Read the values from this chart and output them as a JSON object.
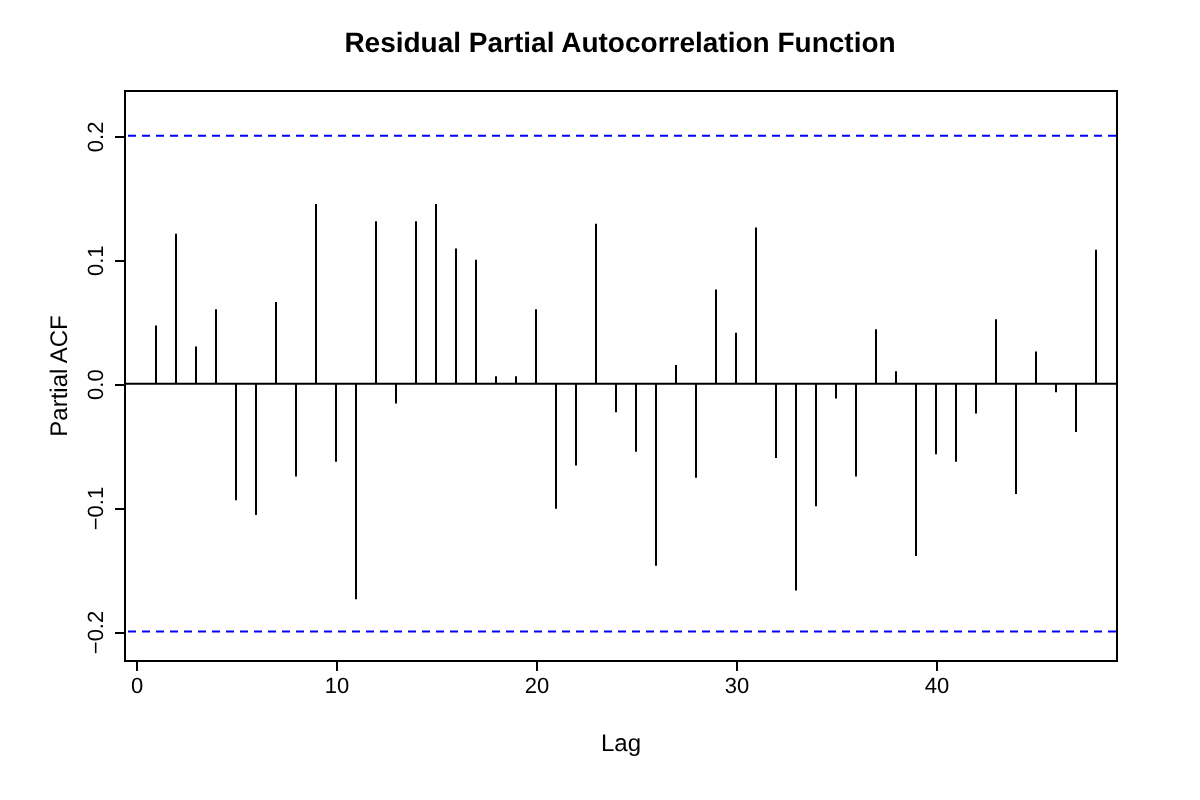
{
  "chart_data": {
    "type": "bar",
    "title": "Residual Partial Autocorrelation Function",
    "xlabel": "Lag",
    "ylabel": "Partial ACF",
    "x": [
      1,
      2,
      3,
      4,
      5,
      6,
      7,
      8,
      9,
      10,
      11,
      12,
      13,
      14,
      15,
      16,
      17,
      18,
      19,
      20,
      21,
      22,
      23,
      24,
      25,
      26,
      27,
      28,
      29,
      30,
      31,
      32,
      33,
      34,
      35,
      36,
      37,
      38,
      39,
      40,
      41,
      42,
      43,
      44,
      45,
      46,
      47,
      48
    ],
    "values": [
      0.047,
      0.121,
      0.03,
      0.06,
      -0.094,
      -0.106,
      0.066,
      -0.075,
      0.145,
      -0.063,
      -0.174,
      0.131,
      -0.016,
      0.131,
      0.145,
      0.109,
      0.1,
      0.006,
      0.006,
      0.06,
      -0.101,
      -0.066,
      0.129,
      -0.023,
      -0.055,
      -0.147,
      0.015,
      -0.076,
      0.076,
      0.041,
      0.126,
      -0.06,
      -0.167,
      -0.099,
      -0.012,
      -0.075,
      0.044,
      0.01,
      -0.139,
      -0.057,
      -0.063,
      -0.024,
      0.052,
      -0.089,
      0.026,
      -0.007,
      -0.039,
      0.108
    ],
    "color": "#000000",
    "xlim": [
      -0.6,
      49
    ],
    "xticks": [
      0,
      10,
      20,
      30,
      40
    ],
    "ylim": [
      -0.223,
      0.237
    ],
    "yticks": [
      -0.2,
      -0.1,
      {
        "value": 0,
        "label": "0.0"
      },
      0.1,
      0.2
    ],
    "ref_lines": [
      {
        "axis": "y",
        "value": 0.2,
        "color": "#0000ff",
        "line_style": "dashed"
      },
      {
        "axis": "y",
        "value": -0.2,
        "color": "#0000ff",
        "line_style": "dashed"
      },
      {
        "axis": "y",
        "value": 0,
        "color": "#000000",
        "line_style": "solid"
      }
    ],
    "grid": false
  }
}
